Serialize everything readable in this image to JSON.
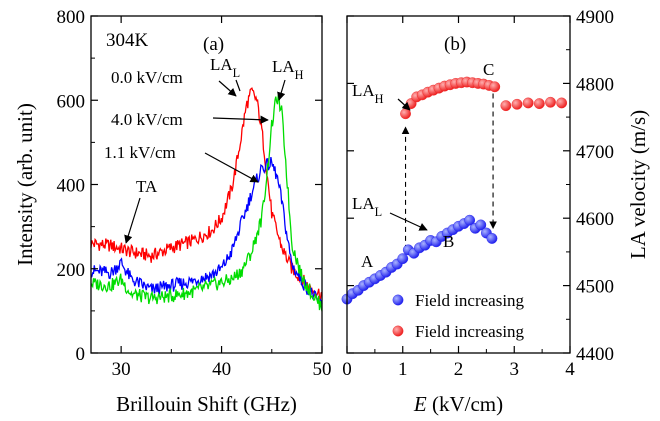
{
  "chart_data": [
    {
      "type": "line",
      "panel_label": "(a)",
      "temperature_label": "304K",
      "xlabel": "Brillouin Shift (GHz)",
      "ylabel": "Intensity (arb. unit)",
      "xlim": [
        27,
        50
      ],
      "ylim": [
        0,
        800
      ],
      "xticks": [
        "30",
        "40",
        "50"
      ],
      "yticks": [
        "0",
        "200",
        "400",
        "600",
        "800"
      ],
      "series": [
        {
          "name": "0.0 kV/cm",
          "color": "#ff0000",
          "x": [
            27,
            29,
            31,
            33,
            35,
            37,
            39,
            40,
            41,
            41.5,
            42,
            42.5,
            43,
            43.5,
            44,
            44.5,
            45,
            46,
            47,
            48,
            49,
            50
          ],
          "y": [
            260,
            255,
            240,
            230,
            250,
            265,
            290,
            320,
            390,
            450,
            520,
            590,
            620,
            600,
            530,
            430,
            330,
            250,
            200,
            175,
            150,
            140
          ]
        },
        {
          "name": "1.1 kV/cm",
          "color": "#0000ff",
          "x": [
            27,
            29,
            30,
            31,
            33,
            35,
            37,
            39,
            40,
            41,
            42,
            43,
            43.5,
            44,
            44.5,
            45,
            45.5,
            46,
            46.5,
            47,
            48,
            49,
            50
          ],
          "y": [
            195,
            190,
            215,
            175,
            150,
            160,
            170,
            185,
            200,
            240,
            310,
            380,
            410,
            440,
            445,
            450,
            420,
            360,
            280,
            210,
            170,
            140,
            110
          ]
        },
        {
          "name": "4.0 kV/cm",
          "color": "#00dd00",
          "x": [
            27,
            29,
            30,
            31,
            33,
            35,
            37,
            39,
            41,
            42,
            43,
            44,
            44.5,
            45,
            45.5,
            46,
            46.5,
            47,
            48,
            49,
            50
          ],
          "y": [
            165,
            160,
            175,
            140,
            130,
            135,
            145,
            160,
            175,
            195,
            240,
            320,
            420,
            540,
            610,
            570,
            420,
            260,
            180,
            140,
            110
          ]
        }
      ],
      "annotations": [
        {
          "text": "TA",
          "x": 30,
          "y": 270
        },
        {
          "text": "0.0 kV/cm",
          "x": 33.5,
          "y": 620
        },
        {
          "text": "4.0 kV/cm",
          "x": 33.5,
          "y": 535
        },
        {
          "text": "1.1 kV/cm",
          "x": 33.5,
          "y": 460
        },
        {
          "text": "LA",
          "sub": "L",
          "x": 40.5,
          "y": 655
        },
        {
          "text": "LA",
          "sub": "H",
          "x": 45.2,
          "y": 655
        }
      ]
    },
    {
      "type": "scatter",
      "panel_label": "(b)",
      "xlabel_italic": "E",
      "xlabel_rest": " (kV/cm)",
      "ylabel": "LA velocity (m/s)",
      "xlim": [
        0,
        4
      ],
      "ylim": [
        4400,
        4900
      ],
      "xticks": [
        "0",
        "1",
        "2",
        "3",
        "4"
      ],
      "yticks": [
        "4400",
        "4500",
        "4600",
        "4700",
        "4800",
        "4900"
      ],
      "series": [
        {
          "name": "Field increasing",
          "color": "#2222ee",
          "x": [
            0.0,
            0.1,
            0.2,
            0.3,
            0.4,
            0.5,
            0.6,
            0.7,
            0.8,
            0.9,
            1.0,
            1.1,
            1.2,
            1.3,
            1.4,
            1.5,
            1.6,
            1.7,
            1.8,
            1.9,
            2.0,
            2.1,
            2.2,
            2.3,
            2.4,
            2.5,
            2.6
          ],
          "y": [
            4480,
            4488,
            4493,
            4500,
            4505,
            4510,
            4515,
            4520,
            4527,
            4532,
            4540,
            4553,
            4548,
            4556,
            4560,
            4567,
            4565,
            4573,
            4578,
            4583,
            4588,
            4592,
            4597,
            4585,
            4590,
            4578,
            4570
          ]
        },
        {
          "name": "Field increasing",
          "color": "#ee2222",
          "x": [
            1.05,
            1.15,
            1.25,
            1.35,
            1.45,
            1.55,
            1.65,
            1.75,
            1.85,
            1.95,
            2.05,
            2.15,
            2.25,
            2.35,
            2.45,
            2.55,
            2.65,
            2.85,
            3.05,
            3.25,
            3.45,
            3.65,
            3.85,
            4.05
          ],
          "y": [
            4755,
            4770,
            4780,
            4783,
            4787,
            4790,
            4793,
            4796,
            4798,
            4800,
            4801,
            4802,
            4801,
            4800,
            4799,
            4797,
            4795,
            4767,
            4769,
            4771,
            4770,
            4772,
            4771,
            4769
          ]
        }
      ],
      "annotations": [
        {
          "text": "A",
          "x": 0.35,
          "y": 4545
        },
        {
          "text": "B",
          "x": 1.75,
          "y": 4615
        },
        {
          "text": "C",
          "x": 2.5,
          "y": 4825
        },
        {
          "text": "LA",
          "sub": "H",
          "x": 0.6,
          "y": 4825
        },
        {
          "text": "LA",
          "sub": "L",
          "x": 0.8,
          "y": 4640
        }
      ]
    }
  ]
}
